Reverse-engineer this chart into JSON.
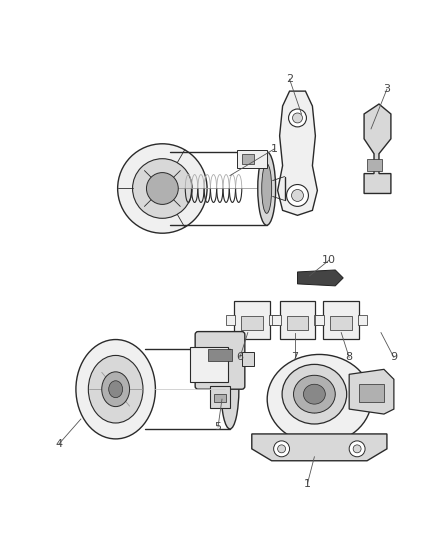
{
  "bg_color": "#ffffff",
  "fig_width": 4.38,
  "fig_height": 5.33,
  "dpi": 100,
  "line_color": "#2a2a2a",
  "fill_light": "#f0f0f0",
  "fill_mid": "#d8d8d8",
  "fill_dark": "#b0b0b0",
  "fill_darker": "#888888",
  "text_color": "#444444",
  "label_fs": 8
}
